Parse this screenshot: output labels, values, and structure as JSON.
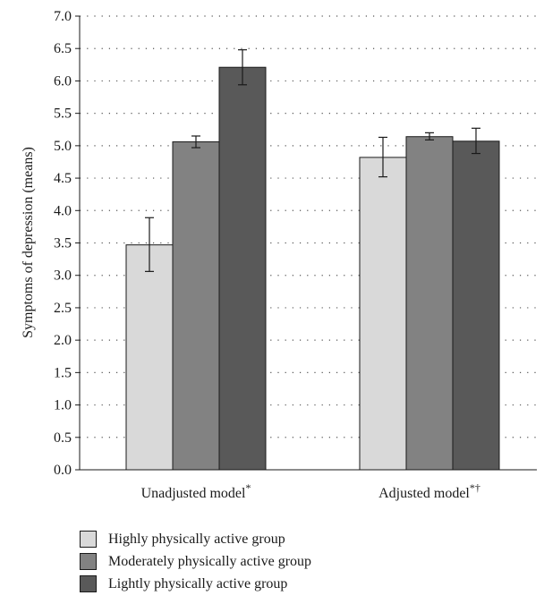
{
  "chart_data": {
    "type": "bar",
    "categories": [
      "Unadjusted model",
      "Adjusted model"
    ],
    "category_superscripts": [
      "*",
      "*†"
    ],
    "series": [
      {
        "name": "Highly physically active group",
        "values": [
          3.47,
          4.82
        ],
        "error_low": [
          3.06,
          4.52
        ],
        "error_high": [
          3.89,
          5.13
        ],
        "color": "#d9d9d9"
      },
      {
        "name": "Moderately physically active group",
        "values": [
          5.06,
          5.14
        ],
        "error_low": [
          4.97,
          5.09
        ],
        "error_high": [
          5.15,
          5.2
        ],
        "color": "#828282"
      },
      {
        "name": "Lightly physically active group",
        "values": [
          6.21,
          5.07
        ],
        "error_low": [
          5.94,
          4.88
        ],
        "error_high": [
          6.48,
          5.27
        ],
        "color": "#595959"
      }
    ],
    "ylabel": "Symptoms of depression (means)",
    "xlabel": "",
    "ylim": [
      0.0,
      7.0
    ],
    "yticks": [
      "0.0",
      "0.5",
      "1.0",
      "1.5",
      "2.0",
      "2.5",
      "3.0",
      "3.5",
      "4.0",
      "4.5",
      "5.0",
      "5.5",
      "6.0",
      "6.5",
      "7.0"
    ],
    "grid": "horizontal dotted",
    "legend_placement": "bottom"
  }
}
